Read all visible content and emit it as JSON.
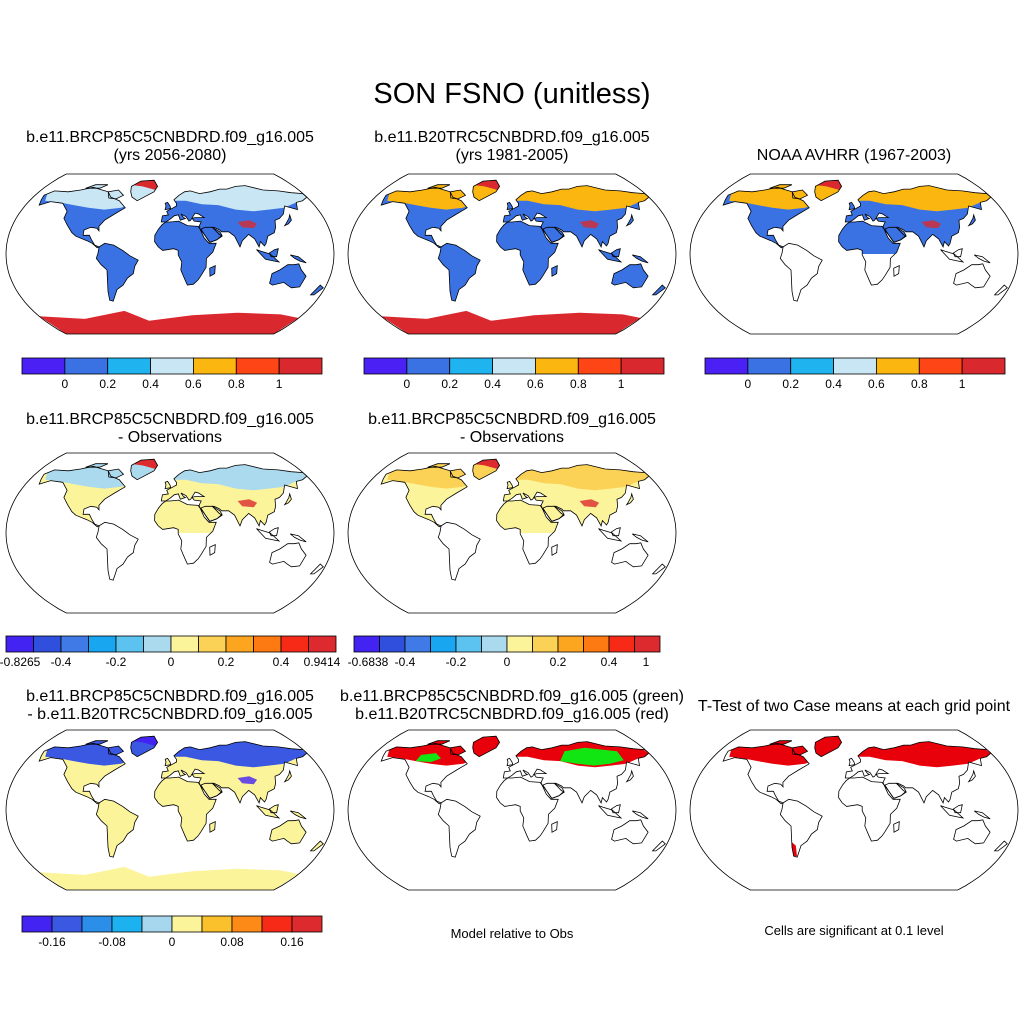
{
  "title": "SON FSNO (unitless)",
  "panels": [
    {
      "id": "p1",
      "title_lines": [
        "b.e11.BRCP85C5CNBDRD.f09_g16.005",
        "(yrs 2056-2080)"
      ],
      "fill": "case_rcp",
      "colorbar": "cb_abs"
    },
    {
      "id": "p2",
      "title_lines": [
        "b.e11.B20TRC5CNBDRD.f09_g16.005",
        "(yrs 1981-2005)"
      ],
      "fill": "case_hist",
      "colorbar": "cb_abs"
    },
    {
      "id": "p3",
      "title_lines": [
        "NOAA AVHRR (1967-2003)"
      ],
      "fill": "obs",
      "colorbar": "cb_abs"
    },
    {
      "id": "p4",
      "title_lines": [
        "b.e11.BRCP85C5CNBDRD.f09_g16.005",
        "- Observations"
      ],
      "fill": "diff_obs",
      "colorbar": "cb_d1"
    },
    {
      "id": "p5",
      "title_lines": [
        "b.e11.BRCP85C5CNBDRD.f09_g16.005",
        "- Observations"
      ],
      "fill": "diff_obs2",
      "colorbar": "cb_d2"
    },
    {
      "id": "p7",
      "title_lines": [
        "b.e11.BRCP85C5CNBDRD.f09_g16.005",
        "- b.e11.B20TRC5CNBDRD.f09_g16.005"
      ],
      "fill": "diff_case",
      "colorbar": "cb_d3"
    },
    {
      "id": "p8",
      "title_lines": [
        "b.e11.BRCP85C5CNBDRD.f09_g16.005 (green)",
        "b.e11.B20TRC5CNBDRD.f09_g16.005 (red)"
      ],
      "fill": "relative",
      "note": "Model relative to Obs"
    },
    {
      "id": "p9",
      "title_lines": [
        "T-Test of two Case means at each grid point"
      ],
      "fill": "ttest",
      "note": "Cells are significant at 0.1 level"
    }
  ],
  "colorbars": {
    "cb_abs": {
      "colors": [
        "#4a20f5",
        "#3a72e4",
        "#1fb3ef",
        "#c9e6f4",
        "#fbb710",
        "#fd4515",
        "#d9292f"
      ],
      "labels": [
        "0",
        "0.2",
        "0.4",
        "0.6",
        "0.8",
        "1"
      ]
    },
    "cb_d1": {
      "colors": [
        "#4323f2",
        "#2f4fdc",
        "#3f7ae6",
        "#17a6ef",
        "#5cc2ef",
        "#abd9ee",
        "#fcf49a",
        "#fbd256",
        "#fca51f",
        "#fd7a12",
        "#f72a17",
        "#dc2a2e"
      ],
      "labels": [
        "-0.8265",
        "-0.4",
        "-0.2",
        "0",
        "0.2",
        "0.4",
        "0.9414"
      ]
    },
    "cb_d2": {
      "colors": [
        "#4323f2",
        "#2f4fdc",
        "#3f7ae6",
        "#17a6ef",
        "#5cc2ef",
        "#abd9ee",
        "#fcf49a",
        "#fbd256",
        "#fca51f",
        "#fd7a12",
        "#f72a17",
        "#dc2a2e"
      ],
      "labels": [
        "-0.6838",
        "-0.4",
        "-0.2",
        "0",
        "0.2",
        "0.4",
        "1"
      ]
    },
    "cb_d3": {
      "colors": [
        "#4323f2",
        "#3a58e2",
        "#2b8ee9",
        "#1bb2ef",
        "#a6d7ee",
        "#fcf49a",
        "#fbc12c",
        "#fd8a16",
        "#f72a17",
        "#dc2a2e"
      ],
      "labels": [
        "-0.16",
        "-0.08",
        "0",
        "0.08",
        "0.16"
      ]
    }
  },
  "map_colors": {
    "case_rcp": {
      "ocean": "#ffffff",
      "land": "#3a72e4",
      "north": "#c9e6f4",
      "arctic": "#d9292f",
      "antarctica": "#d9292f",
      "south_land": true
    },
    "case_hist": {
      "ocean": "#ffffff",
      "land": "#3a72e4",
      "north": "#fbb710",
      "arctic": "#d9292f",
      "antarctica": "#d9292f",
      "south_land": true
    },
    "obs": {
      "ocean": "#ffffff",
      "land": "#3a72e4",
      "north": "#fbb710",
      "arctic": "#d9292f",
      "antarctica": null,
      "south_land": false
    },
    "diff_obs": {
      "ocean": "#ffffff",
      "land": "#fcf49a",
      "north": "#abd9ee",
      "arctic": "#dc2a2e",
      "antarctica": null,
      "south_land": false
    },
    "diff_obs2": {
      "ocean": "#ffffff",
      "land": "#fcf49a",
      "north": "#fbd256",
      "arctic": "#dc2a2e",
      "antarctica": null,
      "south_land": false
    },
    "diff_case": {
      "ocean": "#ffffff",
      "land": "#fcf49a",
      "north": "#3a58e2",
      "arctic": "#4323f2",
      "antarctica": "#fcf49a",
      "south_land": true
    },
    "relative": {
      "ocean": "#ffffff",
      "land": "#ffffff",
      "north": "#e8000b",
      "arctic": "#e8000b",
      "antarctica": null,
      "south_land": false,
      "accent": "#12e612"
    },
    "ttest": {
      "ocean": "#ffffff",
      "land": "#ffffff",
      "north": "#e8000b",
      "arctic": "#e8000b",
      "antarctica": null,
      "south_land": false,
      "andes": "#e8000b"
    }
  }
}
